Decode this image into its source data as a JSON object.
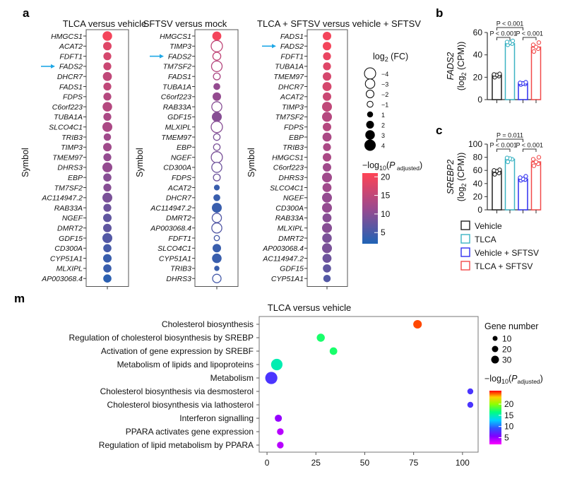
{
  "panel_a": {
    "letter": "a",
    "size_legend": {
      "title": "log2 (FC)",
      "entries": [
        -4,
        -3,
        -2,
        -1,
        1,
        2,
        3,
        4
      ]
    },
    "color_legend": {
      "title": "−log10(P adjusted)",
      "ticks": [
        20,
        15,
        10,
        5
      ],
      "range": [
        2,
        21
      ],
      "low_color": "#1f63b5",
      "high_color": "#ff4455"
    },
    "ylabel": "Symbol",
    "arrow_color": "#1ea7e6"
  },
  "panel_b": {
    "letter": "b"
  },
  "panel_c": {
    "letter": "c"
  },
  "panel_m": {
    "letter": "m"
  },
  "bar_legend": [
    {
      "label": "Vehicle",
      "color": "#222222"
    },
    {
      "label": "TLCA",
      "color": "#3bb3c3"
    },
    {
      "label": "Vehicle + SFTSV",
      "color": "#2f2ff0"
    },
    {
      "label": "TLCA + SFTSV",
      "color": "#f24a4a"
    }
  ],
  "chart_data": [
    {
      "type": "scatter",
      "title": "TLCA versus vehicle",
      "ylabel": "Symbol",
      "arrow_gene": "FADS2",
      "genes": [
        "HMGCS1",
        "ACAT2",
        "FDFT1",
        "FADS2",
        "DHCR7",
        "FADS1",
        "FDPS",
        "C6orf223",
        "TUBA1A",
        "SLCO4C1",
        "TRIB3",
        "TIMP3",
        "TMEM97",
        "DHRS3",
        "EBP",
        "TM7SF2",
        "AC114947.2",
        "RAB33A",
        "NGEF",
        "DMRT2",
        "GDF15",
        "CD300A",
        "CYP51A1",
        "MLXIPL",
        "AP003068.4"
      ],
      "log2fc": [
        2.4,
        2.0,
        1.8,
        1.8,
        2.2,
        1.8,
        1.8,
        2.4,
        1.8,
        2.6,
        1.6,
        2.0,
        1.8,
        2.6,
        1.9,
        1.8,
        2.6,
        1.8,
        2.0,
        2.0,
        2.8,
        1.9,
        2.0,
        1.9,
        1.9
      ],
      "neglog10p": [
        20,
        18,
        17,
        16,
        15,
        15,
        14,
        14,
        13,
        13,
        12,
        12,
        11,
        11,
        10,
        10,
        9,
        8,
        7,
        7,
        6,
        5,
        4,
        4,
        3
      ]
    },
    {
      "type": "scatter",
      "title": "SFTSV versus mock",
      "arrow_gene": "FADS2",
      "genes": [
        "HMGCS1",
        "TIMP3",
        "FADS2",
        "TM7SF2",
        "FADS1",
        "TUBA1A",
        "C6orf223",
        "RAB33A",
        "GDF15",
        "MLXIPL",
        "TMEM97",
        "EBP",
        "NGEF",
        "CD300A",
        "FDPS",
        "ACAT2",
        "DHCR7",
        "AC114947.2",
        "DMRT2",
        "AP003068.4",
        "FDFT1",
        "SLCO4C1",
        "CYP51A1",
        "TRIB3",
        "DHRS3"
      ],
      "log2fc": [
        2.2,
        -3.6,
        -1.8,
        -2.8,
        -1.4,
        1.4,
        2.0,
        -2.6,
        3.2,
        -3.8,
        -1.3,
        -1.3,
        -3.0,
        -2.6,
        -1.4,
        1.0,
        1.4,
        2.6,
        -2.3,
        -2.6,
        -0.8,
        2.0,
        2.4,
        0.8,
        -2.0
      ],
      "neglog10p": [
        20,
        15,
        15,
        14,
        13,
        11,
        11,
        10,
        10,
        10,
        9,
        9,
        9,
        8,
        8,
        4,
        4,
        4,
        6,
        6,
        5,
        4,
        4,
        4,
        5
      ]
    },
    {
      "type": "scatter",
      "title": "TLCA + SFTSV versus vehicle + SFTSV",
      "arrow_gene": "FADS2",
      "genes": [
        "FADS1",
        "FADS2",
        "FDFT1",
        "TUBA1A",
        "TMEM97",
        "DHCR7",
        "ACAT2",
        "TIMP3",
        "TM7SF2",
        "FDPS",
        "EBP",
        "TRIB3",
        "HMGCS1",
        "C6orf223",
        "DHRS3",
        "SLCO4C1",
        "NGEF",
        "CD300A",
        "RAB33A",
        "MLXIPL",
        "DMRT2",
        "AP003068.4",
        "AC114947.2",
        "GDF15",
        "CYP51A1"
      ],
      "log2fc": [
        2.0,
        2.0,
        1.8,
        1.8,
        2.0,
        2.2,
        2.0,
        2.8,
        2.8,
        2.0,
        2.2,
        1.8,
        2.0,
        2.0,
        2.8,
        2.2,
        2.8,
        2.6,
        2.2,
        3.2,
        2.4,
        2.6,
        2.2,
        1.9,
        1.6
      ],
      "neglog10p": [
        20,
        20,
        19,
        18,
        17,
        17,
        16,
        15,
        14,
        14,
        13,
        13,
        13,
        12,
        12,
        12,
        11,
        11,
        10,
        10,
        9,
        9,
        8,
        7,
        6
      ]
    },
    {
      "type": "bar",
      "title": "",
      "ylabel": "FADS2 (log2 (CPM))",
      "ylim": [
        0,
        60
      ],
      "yticks": [
        0,
        20,
        40,
        60
      ],
      "categories": [
        "Vehicle",
        "TLCA",
        "Vehicle + SFTSV",
        "TLCA + SFTSV"
      ],
      "values": [
        22,
        50,
        14.5,
        47
      ],
      "points": [
        [
          20,
          21,
          22,
          22.5,
          23
        ],
        [
          49,
          50,
          51,
          51.5,
          52.5
        ],
        [
          13.5,
          14,
          14.5,
          15,
          15.5
        ],
        [
          43,
          45.5,
          47,
          49,
          51
        ]
      ],
      "annotations": [
        "P < 0.001",
        "P < 0.001",
        "P < 0.001"
      ]
    },
    {
      "type": "bar",
      "title": "",
      "ylabel": "SREBP2 (log2 (CPM))",
      "ylim": [
        0,
        100
      ],
      "yticks": [
        0,
        20,
        40,
        60,
        80,
        100
      ],
      "categories": [
        "Vehicle",
        "TLCA",
        "Vehicle + SFTSV",
        "TLCA + SFTSV"
      ],
      "values": [
        59,
        77,
        47,
        73
      ],
      "points": [
        [
          54,
          56,
          59,
          60,
          61
        ],
        [
          73,
          77,
          78,
          79
        ],
        [
          45,
          46,
          47,
          49,
          51
        ],
        [
          67,
          70,
          73,
          77,
          80
        ]
      ],
      "annotations": [
        "P = 0.011",
        "P < 0.001",
        "P < 0.001"
      ]
    },
    {
      "type": "scatter",
      "title": "TLCA versus vehicle",
      "xlim": [
        -4,
        108
      ],
      "xticks": [
        0,
        25,
        50,
        75,
        100
      ],
      "pathways": [
        "Cholesterol biosynthesis",
        "Regulation of cholesterol biosynthesis by SREBP",
        "Activation of gene expression by SREBF",
        "Metabolism of lipids and lipoproteins",
        "Metabolism",
        "Cholesterol biosynthesis via desmosterol",
        "Cholesterol biosynthesis via lathosterol",
        "Interferon signalling",
        "PPARA activates gene expression",
        "Regulation of lipid metabolism by PPARA"
      ],
      "x": [
        77,
        27.5,
        34,
        5,
        2.2,
        104,
        104,
        5.8,
        6.8,
        6.8
      ],
      "gene_number": [
        18,
        16,
        14,
        30,
        33,
        7,
        7,
        12,
        10,
        10
      ],
      "neglog10p": [
        25,
        17,
        17,
        15,
        8,
        8,
        8,
        5,
        4,
        4
      ],
      "size_legend": {
        "title": "Gene number",
        "entries": [
          10,
          20,
          30
        ]
      },
      "color_legend": {
        "title": "−log10(P adjusted)",
        "ticks": [
          20,
          15,
          10,
          5
        ],
        "range": [
          2,
          26
        ]
      }
    }
  ]
}
